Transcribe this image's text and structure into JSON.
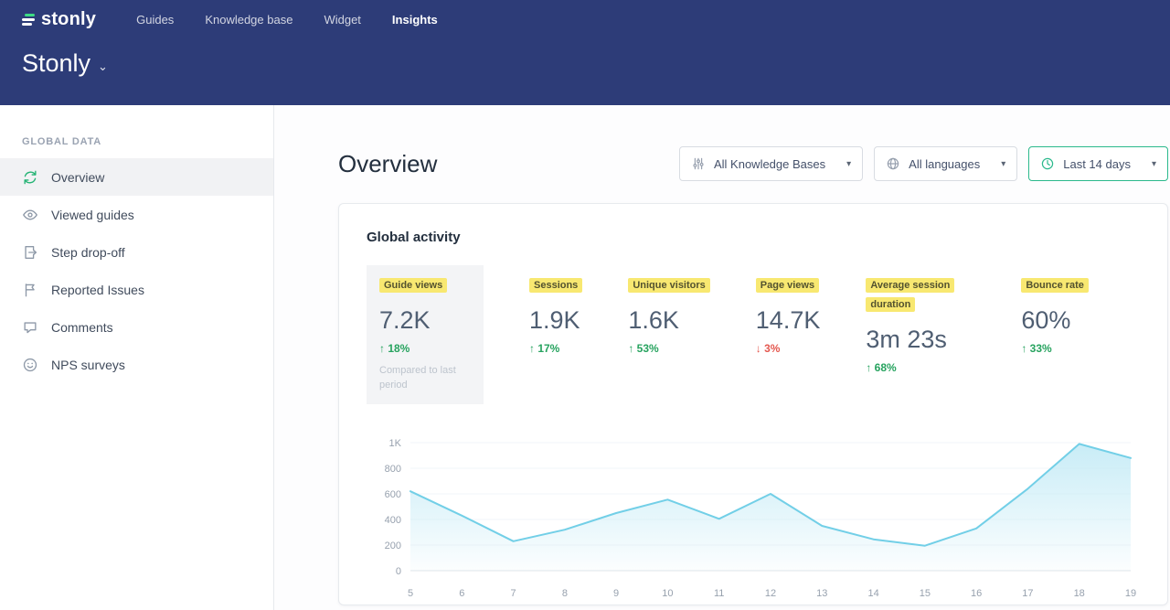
{
  "topnav": {
    "logo_text": "stonly",
    "items": [
      {
        "label": "Guides",
        "active": false
      },
      {
        "label": "Knowledge base",
        "active": false
      },
      {
        "label": "Widget",
        "active": false
      },
      {
        "label": "Insights",
        "active": true
      }
    ]
  },
  "workspace": {
    "name": "Stonly",
    "caret": "⌄"
  },
  "sidebar": {
    "section_label": "GLOBAL DATA",
    "items": [
      {
        "label": "Overview",
        "icon": "refresh-icon",
        "active": true
      },
      {
        "label": "Viewed guides",
        "icon": "eye-icon",
        "active": false
      },
      {
        "label": "Step drop-off",
        "icon": "step-dropoff-icon",
        "active": false
      },
      {
        "label": "Reported Issues",
        "icon": "flag-icon",
        "active": false
      },
      {
        "label": "Comments",
        "icon": "comment-icon",
        "active": false
      },
      {
        "label": "NPS surveys",
        "icon": "smiley-icon",
        "active": false
      }
    ]
  },
  "main": {
    "title": "Overview",
    "filters": [
      {
        "label": "All Knowledge Bases",
        "icon": "sliders-icon",
        "accent": false
      },
      {
        "label": "All languages",
        "icon": "globe-icon",
        "accent": false
      },
      {
        "label": "Last 14 days",
        "icon": "clock-icon",
        "accent": true
      }
    ],
    "card": {
      "title": "Global activity",
      "metrics": [
        {
          "label": "Guide views",
          "value": "7.2K",
          "delta": "18%",
          "direction": "up",
          "note": "Compared to last period",
          "selected": true
        },
        {
          "label": "Sessions",
          "value": "1.9K",
          "delta": "17%",
          "direction": "up",
          "selected": false
        },
        {
          "label": "Unique visitors",
          "value": "1.6K",
          "delta": "53%",
          "direction": "up",
          "selected": false
        },
        {
          "label": "Page views",
          "value": "14.7K",
          "delta": "3%",
          "direction": "down",
          "selected": false
        },
        {
          "label": "Average session duration",
          "value": "3m 23s",
          "delta": "68%",
          "direction": "up",
          "selected": false
        },
        {
          "label": "Bounce rate",
          "value": "60%",
          "delta": "33%",
          "direction": "up",
          "selected": false
        }
      ]
    }
  },
  "chart_data": {
    "type": "area",
    "title": "Global activity — Guide views",
    "x": [
      5,
      6,
      7,
      8,
      9,
      10,
      11,
      12,
      13,
      14,
      15,
      16,
      17,
      18,
      19
    ],
    "values": [
      620,
      430,
      230,
      320,
      450,
      555,
      405,
      600,
      350,
      245,
      195,
      330,
      640,
      990,
      880
    ],
    "ylim": [
      0,
      1000
    ],
    "yticks": [
      "0",
      "200",
      "400",
      "600",
      "800",
      "1K"
    ],
    "grid": true,
    "line_color": "#72cfe7",
    "fill_color": "#bfe9f5"
  },
  "colors": {
    "header_bg": "#2d3c78",
    "accent_green": "#2bb98c",
    "highlight_yellow": "#f8e871",
    "positive": "#27a35f",
    "negative": "#e4584f",
    "chart_line": "#72cfe7"
  }
}
